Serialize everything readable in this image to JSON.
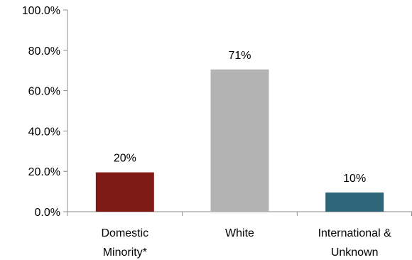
{
  "chart_data": {
    "type": "bar",
    "categories": [
      [
        "Domestic",
        "Minority*"
      ],
      [
        "White"
      ],
      [
        "International &",
        "Unknown"
      ]
    ],
    "values": [
      19.5,
      70.5,
      9.5
    ],
    "data_labels": [
      "20%",
      "71%",
      "10%"
    ],
    "colors": [
      "#7f1a14",
      "#b3b3b3",
      "#30667a"
    ],
    "y_ticks": [
      "0.0%",
      "20.0%",
      "40.0%",
      "60.0%",
      "80.0%",
      "100.0%"
    ],
    "ylim": [
      0,
      100
    ],
    "grid": false,
    "legend": "none"
  }
}
